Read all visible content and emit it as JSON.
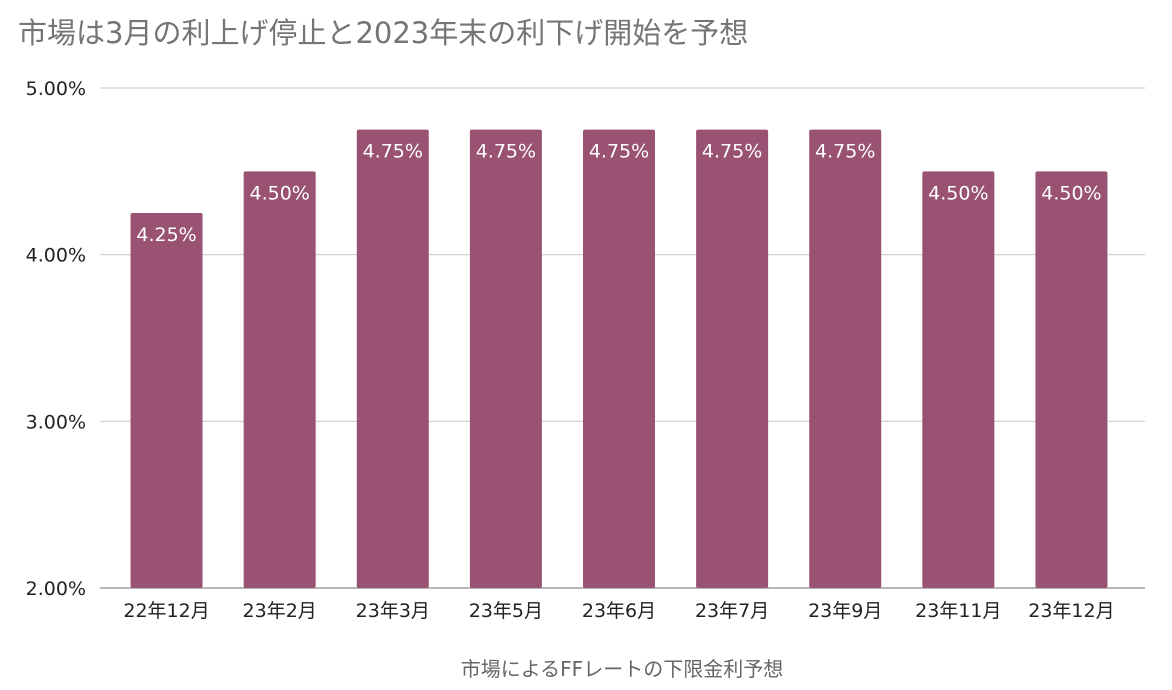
{
  "title": "市場は3月の利上げ停止と2023年末の利下げ開始を予想",
  "chart_data": {
    "type": "bar",
    "title": "市場は3月の利上げ停止と2023年末の利下げ開始を予想",
    "xlabel": "市場によるFFレートの下限金利予想",
    "ylabel": "",
    "categories": [
      "22年12月",
      "23年2月",
      "23年3月",
      "23年5月",
      "23年6月",
      "23年7月",
      "23年9月",
      "23年11月",
      "23年12月"
    ],
    "series": [
      {
        "values": [
          4.25,
          4.5,
          4.75,
          4.75,
          4.75,
          4.75,
          4.75,
          4.5,
          4.5
        ]
      }
    ],
    "data_labels": [
      "4.25%",
      "4.50%",
      "4.75%",
      "4.75%",
      "4.75%",
      "4.75%",
      "4.75%",
      "4.50%",
      "4.50%"
    ],
    "ylim": [
      2.0,
      5.0
    ],
    "y_ticks": [
      2.0,
      3.0,
      4.0,
      5.0
    ],
    "y_tick_labels": [
      "2.00%",
      "3.00%",
      "4.00%",
      "5.00%"
    ],
    "grid": true,
    "legend": "none",
    "bar_color": "#9a5273"
  }
}
